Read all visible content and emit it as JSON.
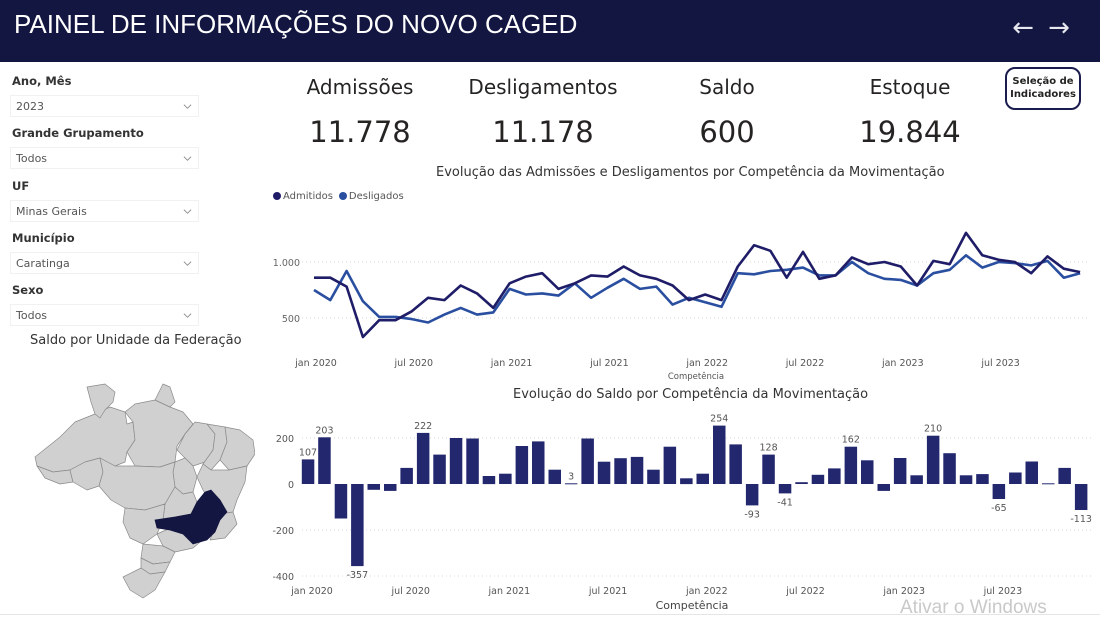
{
  "header": {
    "title": "PAINEL DE INFORMAÇÕES DO NOVO CAGED",
    "back_icon": "arrow-left-icon",
    "forward_icon": "arrow-right-icon",
    "background_color": "#131640"
  },
  "filters": [
    {
      "label": "Ano, Mês",
      "value": "2023"
    },
    {
      "label": "Grande Grupamento",
      "value": "Todos"
    },
    {
      "label": "UF",
      "value": "Minas Gerais"
    },
    {
      "label": "Município",
      "value": "Caratinga"
    },
    {
      "label": "Sexo",
      "value": "Todos"
    }
  ],
  "kpis": [
    {
      "label": "Admissões",
      "value": "11.778"
    },
    {
      "label": "Desligamentos",
      "value": "11.178"
    },
    {
      "label": "Saldo",
      "value": "600"
    },
    {
      "label": "Estoque",
      "value": "19.844"
    }
  ],
  "selection_button": {
    "line1": "Seleção de",
    "line2": "Indicadores"
  },
  "map": {
    "title": "Saldo por Unidade da Federação",
    "highlighted_state": "Minas Gerais",
    "highlight_color": "#131640",
    "base_color": "#d0d0d0"
  },
  "watermark": "Ativar o Windows",
  "chart_data": [
    {
      "type": "line",
      "title": "Evolução das Admissões e Desligamentos por Competência da Movimentação",
      "xlabel": "Competência",
      "ylabel": "",
      "ylim": [
        250,
        1300
      ],
      "yticks": [
        500,
        1000
      ],
      "ytick_labels": [
        "500",
        "1.000"
      ],
      "grid": true,
      "legend": "top-left",
      "x_ticks": [
        "jan 2020",
        "jul 2020",
        "jan 2021",
        "jul 2021",
        "jan 2022",
        "jul 2022",
        "jan 2023",
        "jul 2023"
      ],
      "x_tick_index": [
        0,
        6,
        12,
        18,
        24,
        30,
        36,
        42
      ],
      "series": [
        {
          "name": "Admitidos",
          "color": "#1f1d68",
          "values": [
            860,
            860,
            780,
            330,
            480,
            480,
            560,
            680,
            660,
            790,
            720,
            590,
            810,
            870,
            900,
            760,
            810,
            880,
            870,
            960,
            880,
            850,
            790,
            660,
            710,
            660,
            960,
            1150,
            1100,
            860,
            1090,
            850,
            880,
            1040,
            980,
            1000,
            960,
            790,
            1010,
            980,
            1260,
            1060,
            1020,
            1000,
            900,
            1050,
            940,
            910
          ]
        },
        {
          "name": "Desligados",
          "color": "#2a4fa0",
          "values": [
            750,
            660,
            920,
            650,
            510,
            510,
            490,
            460,
            530,
            590,
            530,
            550,
            760,
            710,
            720,
            700,
            810,
            680,
            770,
            850,
            760,
            780,
            620,
            680,
            640,
            600,
            900,
            890,
            920,
            930,
            950,
            880,
            880,
            1000,
            900,
            850,
            840,
            790,
            900,
            930,
            1060,
            950,
            1000,
            990,
            970,
            1010,
            860,
            900
          ]
        }
      ]
    },
    {
      "type": "bar",
      "title": "Evolução do Saldo por Competência da Movimentação",
      "xlabel": "Competência",
      "ylabel": "",
      "ylim": [
        -400,
        280
      ],
      "yticks": [
        -400,
        -200,
        0,
        200
      ],
      "ytick_labels": [
        "-400",
        "-200",
        "0",
        "200"
      ],
      "grid": true,
      "color": "#23276e",
      "x_ticks": [
        "jan 2020",
        "jul 2020",
        "jan 2021",
        "jul 2021",
        "jan 2022",
        "jul 2022",
        "jan 2023",
        "jul 2023"
      ],
      "x_tick_index": [
        0,
        6,
        12,
        18,
        24,
        30,
        36,
        42
      ],
      "values": [
        107,
        203,
        -150,
        -357,
        -25,
        -30,
        70,
        222,
        128,
        200,
        198,
        35,
        45,
        165,
        185,
        62,
        3,
        198,
        97,
        112,
        118,
        62,
        162,
        25,
        45,
        254,
        172,
        -93,
        128,
        -41,
        8,
        40,
        68,
        162,
        103,
        -30,
        113,
        38,
        210,
        134,
        38,
        43,
        -65,
        50,
        98,
        3,
        70,
        -113
      ],
      "data_labels": {
        "0": "107",
        "1": "203",
        "3": "-357",
        "7": "222",
        "16": "3",
        "25": "254",
        "27": "-93",
        "28": "128",
        "29": "-41",
        "33": "162",
        "38": "210",
        "42": "-65",
        "47": "-113"
      }
    }
  ]
}
